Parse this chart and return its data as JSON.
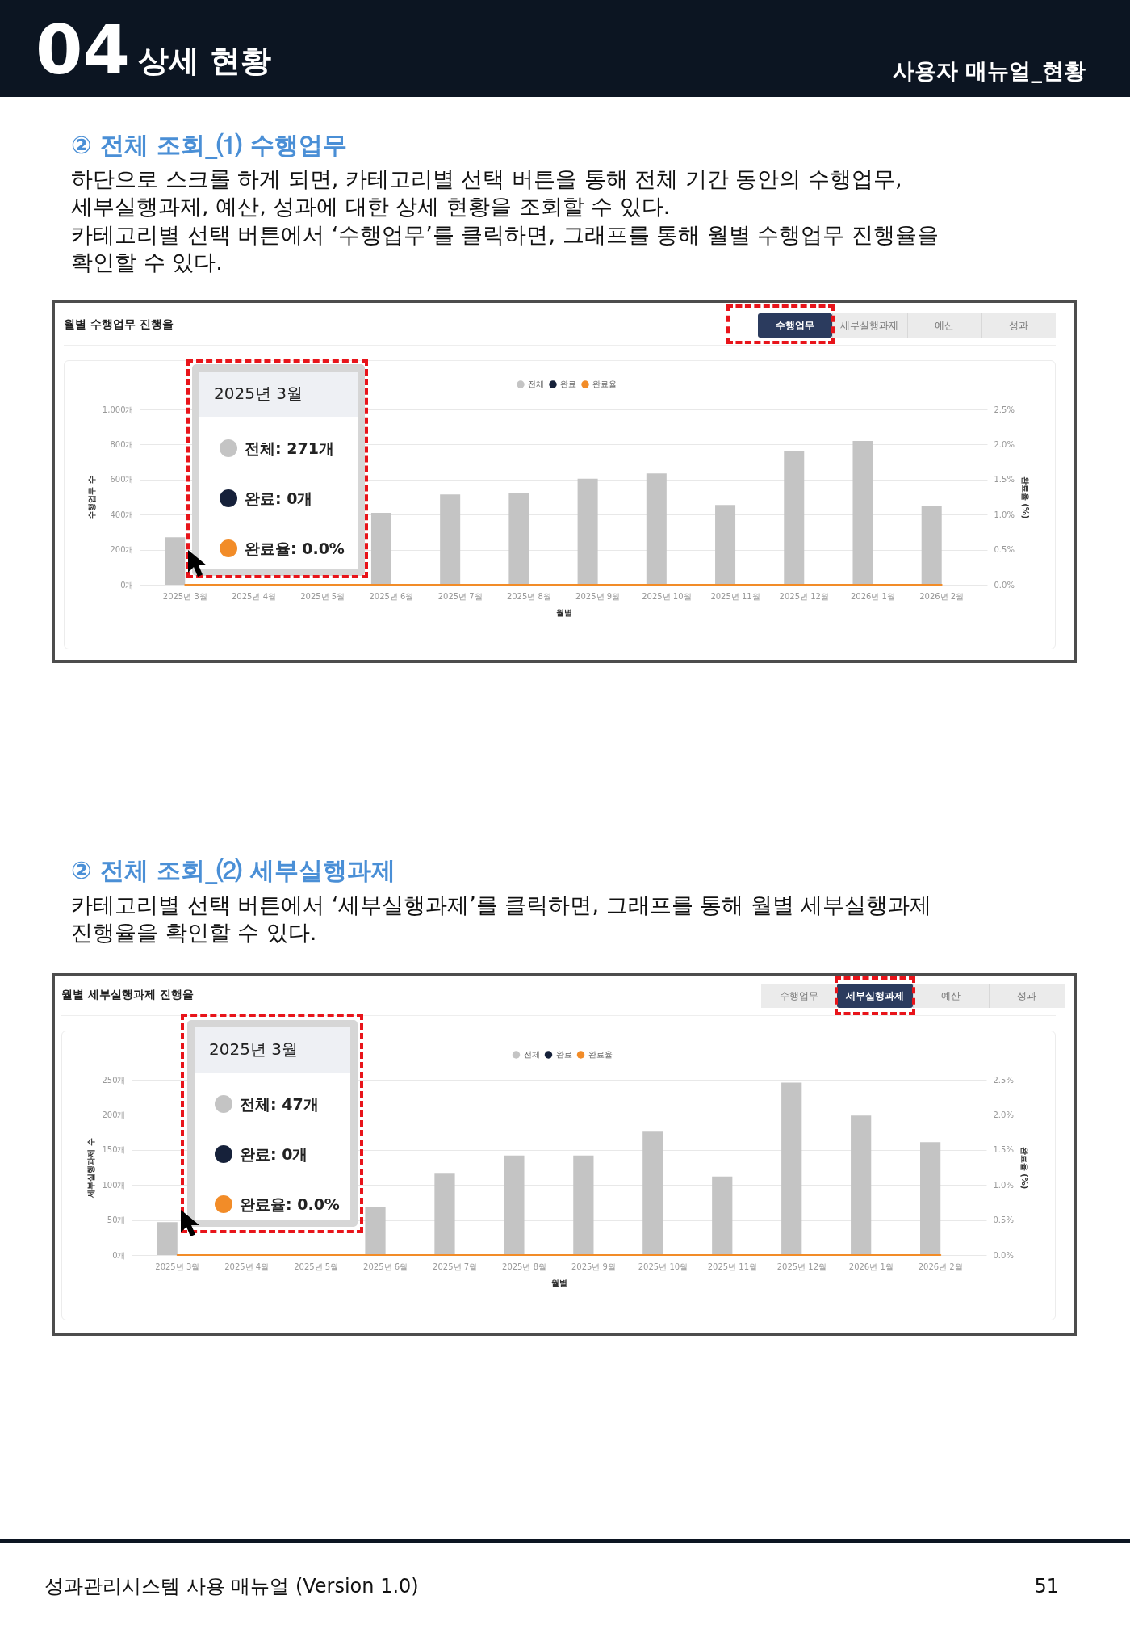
{
  "chart_data": [
    {
      "type": "bar",
      "title": "월별 수행업무 진행율",
      "xlabel": "월별",
      "ylabel": "수행업무 수",
      "y2label": "완료율 (%)",
      "categories": [
        "2025년 3월",
        "2025년 4월",
        "2025년 5월",
        "2025년 6월",
        "2025년 7월",
        "2025년 8월",
        "2025년 9월",
        "2025년 10월",
        "2025년 11월",
        "2025년 12월",
        "2026년 1월",
        "2026년 2월"
      ],
      "series": [
        {
          "name": "전체",
          "color": "#c4c4c4",
          "values": [
            271,
            null,
            null,
            410,
            515,
            525,
            605,
            635,
            455,
            760,
            820,
            450
          ]
        },
        {
          "name": "완료",
          "color": "#16213a",
          "values": [
            null,
            null,
            null,
            null,
            null,
            null,
            null,
            null,
            null,
            null,
            null,
            null
          ]
        },
        {
          "name": "완료율",
          "type": "line",
          "axis": "y2",
          "color": "#f28c28",
          "values": [
            0,
            0,
            0,
            0,
            0,
            0,
            0,
            0,
            0,
            0,
            0,
            0
          ]
        }
      ],
      "ylim": [
        0,
        1000
      ],
      "yticks": [
        {
          "value": 0,
          "label": "0개"
        },
        {
          "value": 200,
          "label": "200개"
        },
        {
          "value": 400,
          "label": "400개"
        },
        {
          "value": 600,
          "label": "600개"
        },
        {
          "value": 800,
          "label": "800개"
        },
        {
          "value": 1000,
          "label": "1,000개"
        }
      ],
      "y2lim": [
        0,
        2.5
      ],
      "y2ticks": [
        {
          "value": 0,
          "label": "0.0%"
        },
        {
          "value": 0.5,
          "label": "0.5%"
        },
        {
          "value": 1,
          "label": "1.0%"
        },
        {
          "value": 1.5,
          "label": "1.5%"
        },
        {
          "value": 2,
          "label": "2.0%"
        },
        {
          "value": 2.5,
          "label": "2.5%"
        }
      ],
      "grid": "y",
      "legend": "top",
      "annotations": [
        "04",
        "상세 현황",
        "사용자 매뉴얼_현황",
        "② 전체 조회_⑴ 수행업무",
        "하단으로 스크롤 하게 되면, 카테고리별 선택 버튼을 통해 전체 기간 동안의 수행업무,",
        "세부실행과제, 예산, 성과에 대한 상세 현황을 조회할 수 있다.",
        "카테고리별 선택 버튼에서 ‘수행업무’를 클릭하면, 그래프를 통해 월별 수행업무 진행율을",
        "확인할 수 있다.",
        "수행업무",
        "세부실행과제",
        "예산",
        "성과",
        "2025년 3월",
        "전체:  271개",
        "완료:  0개",
        "완료율:  0.0%"
      ]
    },
    {
      "type": "bar",
      "title": "월별 세부실행과제 진행율",
      "xlabel": "월별",
      "ylabel": "세부실행과제 수",
      "y2label": "완료율 (%)",
      "categories": [
        "2025년 3월",
        "2025년 4월",
        "2025년 5월",
        "2025년 6월",
        "2025년 7월",
        "2025년 8월",
        "2025년 9월",
        "2025년 10월",
        "2025년 11월",
        "2025년 12월",
        "2026년 1월",
        "2026년 2월"
      ],
      "series": [
        {
          "name": "전체",
          "color": "#c4c4c4",
          "values": [
            47,
            null,
            null,
            68,
            116,
            142,
            142,
            176,
            112,
            246,
            199,
            161
          ]
        },
        {
          "name": "완료",
          "color": "#16213a",
          "values": [
            null,
            null,
            null,
            null,
            null,
            null,
            null,
            null,
            null,
            null,
            null,
            null
          ]
        },
        {
          "name": "완료율",
          "type": "line",
          "axis": "y2",
          "color": "#f28c28",
          "values": [
            0,
            0,
            0,
            0,
            0,
            0,
            0,
            0,
            0,
            0,
            0,
            0
          ]
        }
      ],
      "ylim": [
        0,
        250
      ],
      "yticks": [
        {
          "value": 0,
          "label": "0개"
        },
        {
          "value": 50,
          "label": "50개"
        },
        {
          "value": 100,
          "label": "100개"
        },
        {
          "value": 150,
          "label": "150개"
        },
        {
          "value": 200,
          "label": "200개"
        },
        {
          "value": 250,
          "label": "250개"
        }
      ],
      "y2lim": [
        0,
        2.5
      ],
      "y2ticks": [
        {
          "value": 0,
          "label": "0.0%"
        },
        {
          "value": 0.5,
          "label": "0.5%"
        },
        {
          "value": 1,
          "label": "1.0%"
        },
        {
          "value": 1.5,
          "label": "1.5%"
        },
        {
          "value": 2,
          "label": "2.0%"
        },
        {
          "value": 2.5,
          "label": "2.5%"
        }
      ],
      "grid": "y",
      "legend": "top",
      "annotations": [
        "② 전체 조회_⑵ 세부실행과제",
        "카테고리별 선택 버튼에서 ‘세부실행과제’를 클릭하면, 그래프를 통해 월별 세부실행과제",
        "진행율을 확인할 수 있다.",
        "수행업무",
        "세부실행과제",
        "예산",
        "성과",
        "2025년 3월",
        "전체:  47개",
        "완료:  0개",
        "완료율:  0.0%",
        "성과관리시스템 사용 매뉴얼 (Version 1.0)",
        "51"
      ]
    }
  ]
}
